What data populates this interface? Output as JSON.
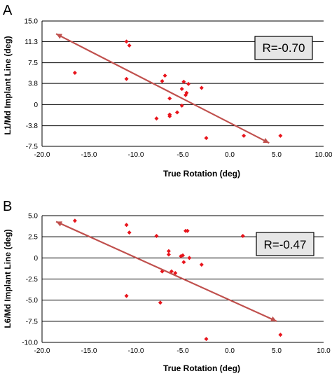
{
  "chart_data": [
    {
      "panel": "A",
      "type": "scatter",
      "xlabel": "True Rotation (deg)",
      "ylabel": "L1/Md Implant Line (deg)",
      "xlim": [
        -20,
        10
      ],
      "ylim": [
        -7.5,
        15.0
      ],
      "x_ticks": [
        "-20.0",
        "-15.0",
        "-10.0",
        "-5.0",
        "0.0",
        "5.0",
        "10.00"
      ],
      "y_ticks": [
        "15.0",
        "11.3",
        "7.5",
        "3.8",
        "0",
        "-3.8",
        "-7.5"
      ],
      "y_tick_values": [
        15.0,
        11.3,
        7.5,
        3.8,
        0,
        -3.8,
        -7.5
      ],
      "grid": "horizontal",
      "annotation": "R=-0.70",
      "points": [
        {
          "x": -16.5,
          "y": 5.7
        },
        {
          "x": -11.0,
          "y": 11.3
        },
        {
          "x": -10.7,
          "y": 10.6
        },
        {
          "x": -11.0,
          "y": 4.6
        },
        {
          "x": -7.2,
          "y": 4.2
        },
        {
          "x": -6.9,
          "y": 5.2
        },
        {
          "x": -4.9,
          "y": 4.1
        },
        {
          "x": -4.4,
          "y": 3.7
        },
        {
          "x": -5.1,
          "y": 2.8
        },
        {
          "x": -3.0,
          "y": 3.0
        },
        {
          "x": -4.6,
          "y": 2.1
        },
        {
          "x": -4.7,
          "y": 1.7
        },
        {
          "x": -6.4,
          "y": 1.1
        },
        {
          "x": -5.6,
          "y": -1.4
        },
        {
          "x": -6.4,
          "y": -1.8
        },
        {
          "x": -6.4,
          "y": -2.1
        },
        {
          "x": -5.1,
          "y": -0.2
        },
        {
          "x": -7.8,
          "y": -2.5
        },
        {
          "x": -2.5,
          "y": -6.0
        },
        {
          "x": 1.5,
          "y": -5.6
        },
        {
          "x": 5.4,
          "y": -5.6
        }
      ],
      "trendline": {
        "x": [
          -18.5,
          4.2
        ],
        "y": [
          12.7,
          -6.9
        ]
      },
      "colors": {
        "points": "#e8141c",
        "trendline": "#c0504d"
      }
    },
    {
      "panel": "B",
      "type": "scatter",
      "xlabel": "True Rotation (deg)",
      "ylabel": "L6/Md Implant Line (deg)",
      "xlim": [
        -20,
        10
      ],
      "ylim": [
        -10,
        5
      ],
      "x_ticks": [
        "-20.0",
        "-15.0",
        "-10.0",
        "-5.0",
        "0.0",
        "5.0",
        "10.0"
      ],
      "y_ticks": [
        "5.0",
        "2.5",
        "0",
        "-2.5",
        "-5.0",
        "-7.5",
        "-10.0"
      ],
      "y_tick_values": [
        5.0,
        2.5,
        0,
        -2.5,
        -5.0,
        -7.5,
        -10.0
      ],
      "grid": "horizontal",
      "annotation": "R=-0.47",
      "points": [
        {
          "x": -16.5,
          "y": 4.4
        },
        {
          "x": -11.0,
          "y": 3.9
        },
        {
          "x": -10.7,
          "y": 3.0
        },
        {
          "x": -7.8,
          "y": 2.6
        },
        {
          "x": -4.7,
          "y": 3.2
        },
        {
          "x": -4.5,
          "y": 3.2
        },
        {
          "x": 1.4,
          "y": 2.6
        },
        {
          "x": -6.5,
          "y": 0.8
        },
        {
          "x": -6.5,
          "y": 0.4
        },
        {
          "x": -5.2,
          "y": 0.2
        },
        {
          "x": -5.0,
          "y": 0.3
        },
        {
          "x": -4.3,
          "y": 0.0
        },
        {
          "x": -4.9,
          "y": -0.5
        },
        {
          "x": -3.0,
          "y": -0.8
        },
        {
          "x": -7.2,
          "y": -1.6
        },
        {
          "x": -6.2,
          "y": -1.6
        },
        {
          "x": -5.8,
          "y": -1.8
        },
        {
          "x": -11.0,
          "y": -4.5
        },
        {
          "x": -7.4,
          "y": -5.3
        },
        {
          "x": -2.5,
          "y": -9.6
        },
        {
          "x": 5.4,
          "y": -9.1
        }
      ],
      "trendline": {
        "x": [
          -18.5,
          5.0
        ],
        "y": [
          4.3,
          -7.5
        ]
      },
      "colors": {
        "points": "#e8141c",
        "trendline": "#c0504d"
      }
    }
  ]
}
